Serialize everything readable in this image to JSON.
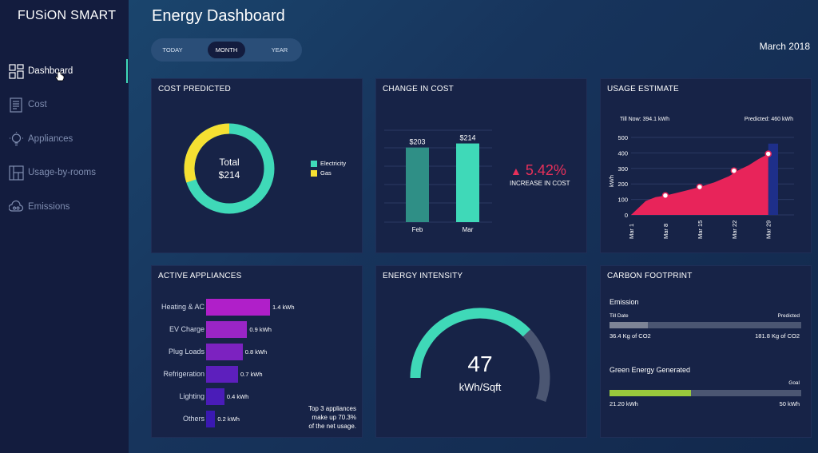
{
  "app": {
    "brand": "FUSiON SMART",
    "title": "Energy Dashboard",
    "date": "March 2018"
  },
  "sidebar": {
    "items": [
      {
        "label": "Dashboard",
        "icon": "dashboard-icon",
        "active": true
      },
      {
        "label": "Cost",
        "icon": "cost-icon"
      },
      {
        "label": "Appliances",
        "icon": "appliances-icon"
      },
      {
        "label": "Usage-by-rooms",
        "icon": "rooms-icon"
      },
      {
        "label": "Emissions",
        "icon": "emissions-icon"
      }
    ]
  },
  "period": {
    "options": [
      "TODAY",
      "MONTH",
      "YEAR"
    ],
    "selected": "MONTH"
  },
  "colors": {
    "accent": "#3fd9b8",
    "gas": "#f5e032",
    "usage": "#e8245a",
    "warning": "#e8305a",
    "green": "#99c93c",
    "sidebar": "#131c3e",
    "card": "#172347"
  },
  "cards": {
    "cost_predicted": {
      "title": "COST PREDICTED",
      "total_label": "Total",
      "total_value": "$214",
      "legend": [
        "Electricity",
        "Gas"
      ]
    },
    "change_in_cost": {
      "title": "CHANGE IN COST",
      "change_value": "5.42%",
      "change_label": "INCREASE IN COST",
      "arrow": "▲"
    },
    "usage_estimate": {
      "title": "USAGE ESTIMATE",
      "till_now": "Till Now: 394.1 kWh",
      "predicted": "Predicted: 460 kWh",
      "ylabel": "kWh"
    },
    "active_appliances": {
      "title": "ACTIVE APPLIANCES",
      "items": [
        {
          "label": "Heating & AC",
          "value": "1.4 kWh",
          "kwh": 1.4,
          "color": "#b01fc9"
        },
        {
          "label": "EV Charge",
          "value": "0.9 kWh",
          "kwh": 0.9,
          "color": "#9a25c6"
        },
        {
          "label": "Plug Loads",
          "value": "0.8 kWh",
          "kwh": 0.8,
          "color": "#7c22c0"
        },
        {
          "label": "Refrigeration",
          "value": "0.7 kWh",
          "kwh": 0.7,
          "color": "#5d1fbd"
        },
        {
          "label": "Lighting",
          "value": "0.4 kWh",
          "kwh": 0.4,
          "color": "#4a1cb8"
        },
        {
          "label": "Others",
          "value": "0.2 kWh",
          "kwh": 0.2,
          "color": "#3a19b2"
        }
      ],
      "note_line1": "Top 3 appliances",
      "note_line2": "make up 70.3%",
      "note_line3": "of the net usage."
    },
    "energy_intensity": {
      "title": "ENERGY INTENSITY",
      "value": "47",
      "unit": "kWh/Sqft",
      "fraction": 0.68
    },
    "carbon_footprint": {
      "title": "CARBON FOOTPRINT",
      "emission_title": "Emission",
      "till_date_label": "Till Date",
      "predicted_label": "Predicted",
      "till_date_value": "36.4 Kg of CO2",
      "predicted_value": "181.8 Kg of CO2",
      "emission_fraction": 0.2,
      "green_title": "Green Energy Generated",
      "goal_label": "Goal",
      "green_value": "21.20 kWh",
      "goal_value": "50 kWh",
      "green_fraction": 0.424
    }
  },
  "chart_data": [
    {
      "type": "pie",
      "title": "COST PREDICTED",
      "categories": [
        "Electricity",
        "Gas"
      ],
      "values": [
        70,
        30
      ]
    },
    {
      "type": "bar",
      "title": "CHANGE IN COST",
      "categories": [
        "Feb",
        "Mar"
      ],
      "values": [
        203,
        214
      ],
      "labels": [
        "$203",
        "$214"
      ],
      "ylim": [
        0,
        250
      ]
    },
    {
      "type": "area",
      "title": "USAGE ESTIMATE",
      "xlabel": "",
      "ylabel": "kWh",
      "x": [
        "Mar 1",
        "Mar 8",
        "Mar 15",
        "Mar 22",
        "Mar 29"
      ],
      "y_ticks": [
        "0",
        "100",
        "200",
        "300",
        "400",
        "500"
      ],
      "ylim": [
        0,
        500
      ],
      "series": [
        {
          "name": "Usage",
          "x": [
            1,
            4,
            6,
            8,
            10,
            12,
            15,
            18,
            21,
            23,
            25,
            27,
            29
          ],
          "values": [
            0,
            90,
            115,
            125,
            140,
            155,
            180,
            210,
            250,
            290,
            320,
            360,
            394
          ]
        },
        {
          "name": "Markers",
          "x": [
            8,
            15,
            22,
            29
          ],
          "values": [
            125,
            180,
            285,
            394
          ]
        }
      ],
      "predicted_x": [
        29,
        31
      ],
      "predicted_y": 460
    }
  ]
}
